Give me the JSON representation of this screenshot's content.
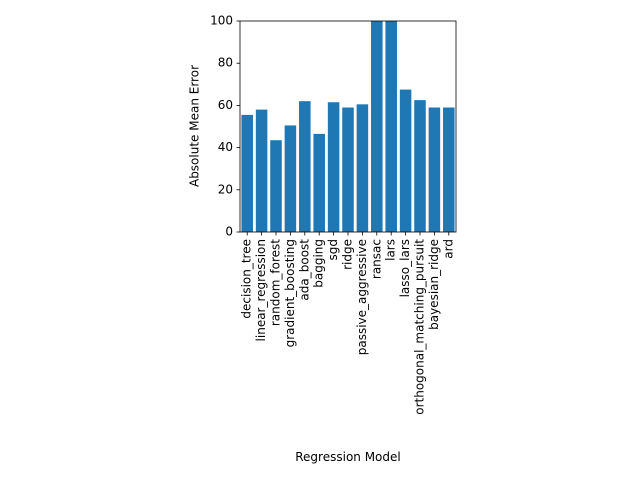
{
  "chart_data": {
    "type": "bar",
    "xlabel": "Regression Model",
    "ylabel": "Absolute Mean Error",
    "ylim": [
      0,
      100
    ],
    "yticks": [
      0,
      20,
      40,
      60,
      80,
      100
    ],
    "grid": false,
    "bar_color": "#1f77b4",
    "categories": [
      "decision_tree",
      "linear_regression",
      "random_forest",
      "gradient_boosting",
      "ada_boost",
      "bagging",
      "sgd",
      "ridge",
      "passive_aggressive",
      "ransac",
      "lars",
      "lasso_lars",
      "orthogonal_matching_pursuit",
      "bayesian_ridge",
      "ard"
    ],
    "values": [
      55.5,
      58,
      43.5,
      50.5,
      62,
      46.5,
      61.5,
      59,
      60.5,
      100,
      100,
      67.5,
      62.5,
      59,
      59
    ]
  }
}
